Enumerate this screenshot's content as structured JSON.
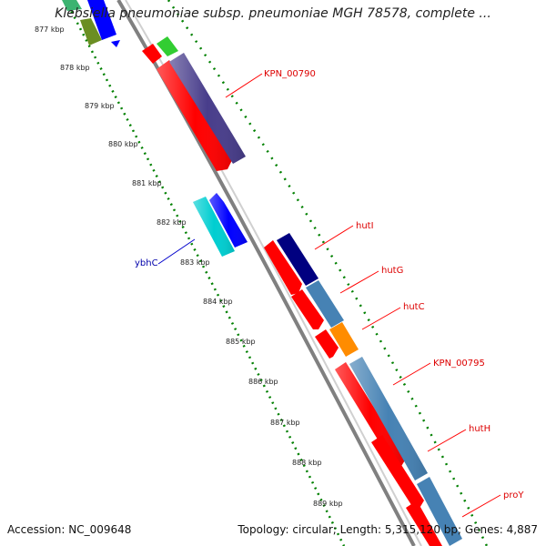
{
  "title": "Klebsiella pneumoniae subsp. pneumoniae MGH 78578, complete ...",
  "ticks": [
    "877 kbp",
    "878 kbp",
    "879 kbp",
    "880 kbp",
    "881 kbp",
    "882 kbp",
    "883 kbp",
    "884 kbp",
    "885 kbp",
    "886 kbp",
    "887 kbp",
    "888 kbp",
    "889 kbp"
  ],
  "genes": [
    {
      "name": "KPN_00790",
      "color": "#dd0000"
    },
    {
      "name": "ybhC",
      "color": "#0000aa"
    },
    {
      "name": "hutI",
      "color": "#dd0000"
    },
    {
      "name": "hutG",
      "color": "#dd0000"
    },
    {
      "name": "hutC",
      "color": "#dd0000"
    },
    {
      "name": "KPN_00795",
      "color": "#dd0000"
    },
    {
      "name": "hutH",
      "color": "#dd0000"
    },
    {
      "name": "proY",
      "color": "#dd0000"
    }
  ],
  "feature_colors": {
    "cds_red": "#ff0000",
    "purple": "#483d8b",
    "navy": "#000080",
    "steelblue": "#4682b4",
    "orange": "#ff8c00",
    "cyan": "#00ced1",
    "blue": "#0000ff",
    "green": "#32cd32",
    "olive": "#6b8e23",
    "tick_green": "#008000",
    "backbone": "#808080"
  },
  "footer": {
    "accession": "Accession: NC_009648",
    "stats": "Topology: circular; Length: 5,315,120 bp; Genes: 4,887"
  }
}
